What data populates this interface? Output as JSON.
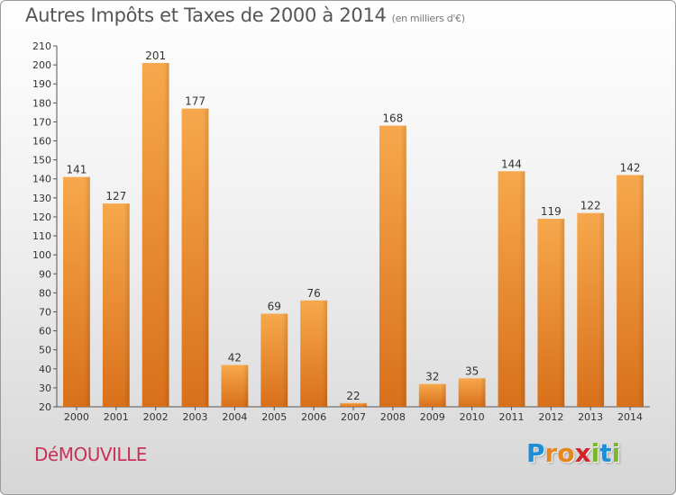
{
  "header": {
    "title": "Autres Impôts et Taxes de 2000 à 2014",
    "unit": "(en milliers d'€)"
  },
  "footer": {
    "commune": "DéMOUVILLE",
    "logo": {
      "letters": [
        "P",
        "r",
        "o",
        "x",
        "i",
        "t",
        "i"
      ],
      "colors": [
        "#1e8fd6",
        "#e8861b",
        "#e8861b",
        "#d6232a",
        "#7ab829",
        "#1e8fd6",
        "#7ab829"
      ]
    }
  },
  "chart_data": {
    "type": "bar",
    "categories": [
      "2000",
      "2001",
      "2002",
      "2003",
      "2004",
      "2005",
      "2006",
      "2007",
      "2008",
      "2009",
      "2010",
      "2011",
      "2012",
      "2013",
      "2014"
    ],
    "values": [
      141,
      127,
      201,
      177,
      42,
      69,
      76,
      22,
      168,
      32,
      35,
      144,
      119,
      122,
      142
    ],
    "ylim": [
      20,
      210
    ],
    "yticks": [
      20,
      30,
      40,
      50,
      60,
      70,
      80,
      90,
      100,
      110,
      120,
      130,
      140,
      150,
      160,
      170,
      180,
      190,
      200,
      210
    ],
    "data_labels": true,
    "grid": false,
    "bar_color": "#f0912e"
  }
}
